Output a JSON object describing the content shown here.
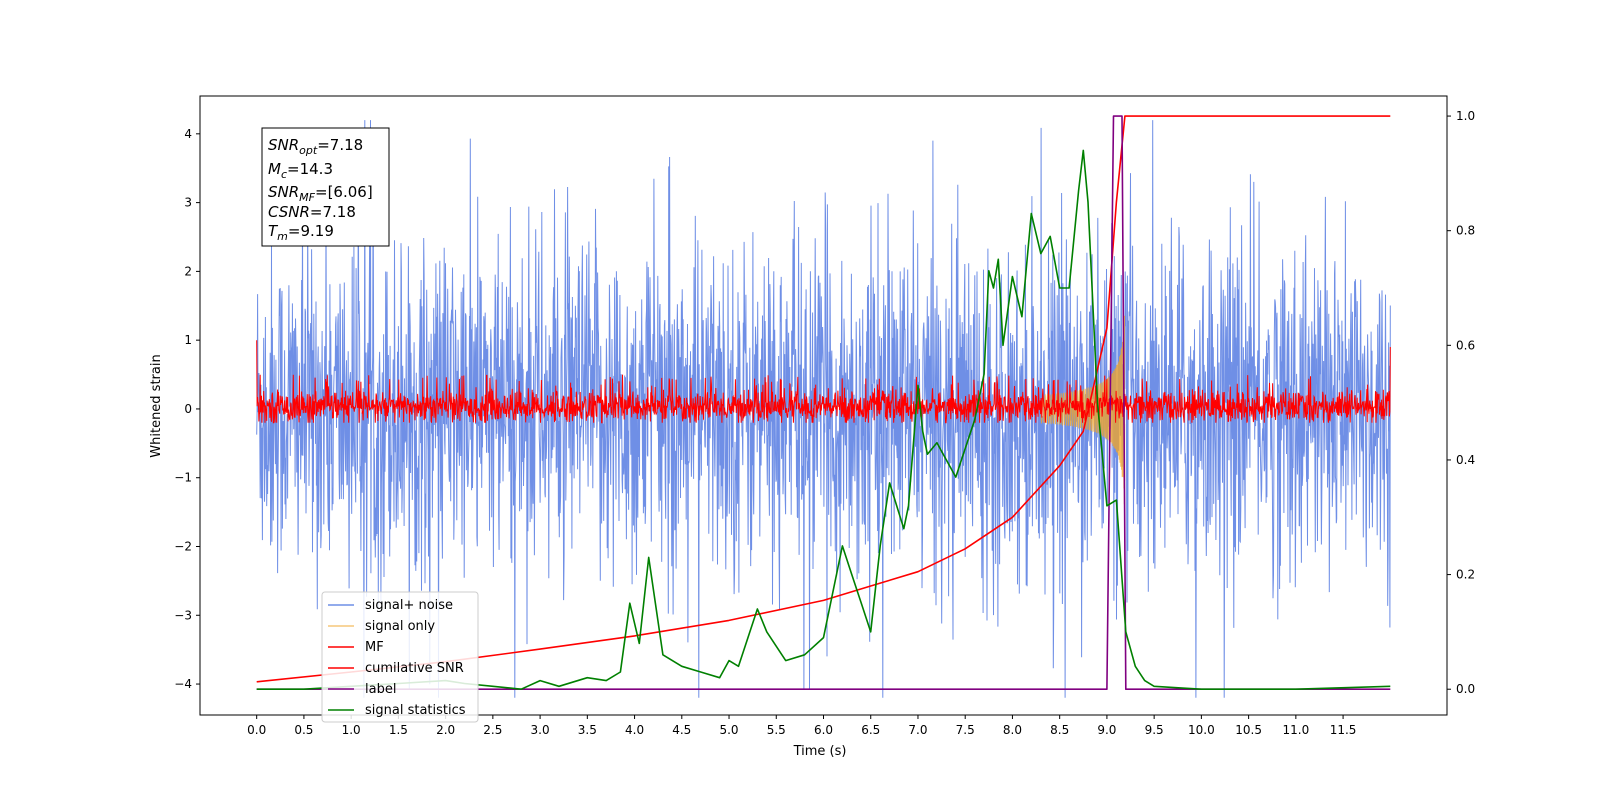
{
  "chart_data": {
    "type": "line",
    "xlabel": "Time (s)",
    "ylabel": "Whitened strain",
    "xlim": [
      -0.6,
      12.6
    ],
    "ylim": [
      -4.45,
      4.55
    ],
    "y2lim": [
      -0.045,
      1.035
    ],
    "x_ticks": [
      0.0,
      0.5,
      1.0,
      1.5,
      2.0,
      2.5,
      3.0,
      3.5,
      4.0,
      4.5,
      5.0,
      5.5,
      6.0,
      6.5,
      7.0,
      7.5,
      8.0,
      8.5,
      9.0,
      9.5,
      10.0,
      10.5,
      11.0,
      11.5
    ],
    "x_tick_labels": [
      "0.0",
      "0.5",
      "1.0",
      "1.5",
      "2.0",
      "2.5",
      "3.0",
      "3.5",
      "4.0",
      "4.5",
      "5.0",
      "5.5",
      "6.0",
      "6.5",
      "7.0",
      "7.5",
      "8.0",
      "8.5",
      "9.0",
      "9.5",
      "10.0",
      "10.5",
      "11.0",
      "11.5"
    ],
    "y_ticks": [
      4,
      3,
      2,
      1,
      0,
      -1,
      -2,
      -3,
      -4
    ],
    "y_tick_labels": [
      "4",
      "3",
      "2",
      "1",
      "0",
      "−1",
      "−2",
      "−3",
      "−4"
    ],
    "y2_ticks": [
      1.0,
      0.8,
      0.6,
      0.4,
      0.2,
      0.0
    ],
    "y2_tick_labels": [
      "1.0",
      "0.8",
      "0.6",
      "0.4",
      "0.2",
      "0.0"
    ],
    "annotation": {
      "lines": [
        {
          "main": "SNR",
          "sub": "opt",
          "value": "=7.18"
        },
        {
          "main": "M",
          "sub": "c",
          "value": "=14.3"
        },
        {
          "main": "SNR",
          "sub": "MF",
          "value": "=[6.06]"
        },
        {
          "main": "CSNR",
          "sub": "",
          "value": "=7.18"
        },
        {
          "main": "T",
          "sub": "m",
          "value": "=9.19"
        }
      ]
    },
    "series": [
      {
        "name": "signal+ noise",
        "color": "#6f8fe6",
        "axis": "left",
        "kind": "noise",
        "x_range": [
          0.0,
          12.0
        ],
        "amplitude": 2.8,
        "spike_max": 4.2
      },
      {
        "name": "signal only",
        "color": "#f5a623",
        "axis": "left",
        "kind": "chirp",
        "merger_time": 9.19,
        "peak_amplitude": 1.6
      },
      {
        "name": "MF",
        "color": "#ff0000",
        "axis": "left",
        "kind": "noise",
        "x_range": [
          0.0,
          12.0
        ],
        "center": 0.0,
        "lower": -0.2,
        "upper": 0.5
      },
      {
        "name": "cumilative SNR",
        "color": "#ff0000",
        "axis": "right",
        "x": [
          0.0,
          1.0,
          2.0,
          3.0,
          4.0,
          5.0,
          6.0,
          6.5,
          7.0,
          7.5,
          8.0,
          8.5,
          8.75,
          9.0,
          9.1,
          9.19,
          12.0
        ],
        "y": [
          0.013,
          0.03,
          0.048,
          0.07,
          0.093,
          0.12,
          0.155,
          0.18,
          0.205,
          0.245,
          0.3,
          0.39,
          0.45,
          0.63,
          0.85,
          1.0,
          1.0
        ]
      },
      {
        "name": "label",
        "color": "#800080",
        "axis": "right",
        "x": [
          0.0,
          9.0,
          9.07,
          9.1,
          9.16,
          9.2,
          12.0
        ],
        "y": [
          0.0,
          0.0,
          1.0,
          1.0,
          1.0,
          0.0,
          0.0
        ]
      },
      {
        "name": "signal statistics",
        "color": "#008000",
        "axis": "right",
        "x": [
          0.0,
          0.5,
          1.0,
          1.5,
          2.0,
          2.2,
          2.5,
          2.8,
          3.0,
          3.2,
          3.5,
          3.7,
          3.85,
          3.95,
          4.05,
          4.15,
          4.3,
          4.5,
          4.7,
          4.9,
          5.0,
          5.1,
          5.3,
          5.4,
          5.6,
          5.8,
          6.0,
          6.2,
          6.3,
          6.4,
          6.5,
          6.6,
          6.7,
          6.85,
          6.9,
          7.0,
          7.05,
          7.1,
          7.2,
          7.4,
          7.5,
          7.6,
          7.7,
          7.75,
          7.8,
          7.85,
          7.9,
          8.0,
          8.1,
          8.2,
          8.3,
          8.4,
          8.5,
          8.6,
          8.7,
          8.75,
          8.8,
          8.9,
          9.0,
          9.1,
          9.2,
          9.3,
          9.4,
          9.5,
          9.8,
          10.0,
          11.0,
          12.0
        ],
        "y": [
          0.0,
          0.0,
          0.005,
          0.01,
          0.015,
          0.01,
          0.005,
          0.0,
          0.015,
          0.005,
          0.02,
          0.015,
          0.03,
          0.15,
          0.08,
          0.23,
          0.06,
          0.04,
          0.03,
          0.02,
          0.05,
          0.04,
          0.14,
          0.1,
          0.05,
          0.06,
          0.09,
          0.25,
          0.2,
          0.15,
          0.1,
          0.25,
          0.36,
          0.28,
          0.32,
          0.53,
          0.45,
          0.41,
          0.43,
          0.37,
          0.42,
          0.47,
          0.55,
          0.73,
          0.7,
          0.75,
          0.6,
          0.72,
          0.65,
          0.83,
          0.76,
          0.79,
          0.7,
          0.7,
          0.87,
          0.94,
          0.85,
          0.5,
          0.32,
          0.33,
          0.1,
          0.04,
          0.015,
          0.005,
          0.002,
          0.0,
          0.0,
          0.005
        ]
      }
    ],
    "legend": {
      "location": "lower-left",
      "entries": [
        "signal+ noise",
        "signal only",
        "MF",
        "cumilative SNR",
        "label",
        "signal statistics"
      ],
      "colors": [
        "#6f8fe6",
        "#f5c77a",
        "#ff0000",
        "#ff0000",
        "#800080",
        "#008000"
      ]
    },
    "grid": false
  }
}
